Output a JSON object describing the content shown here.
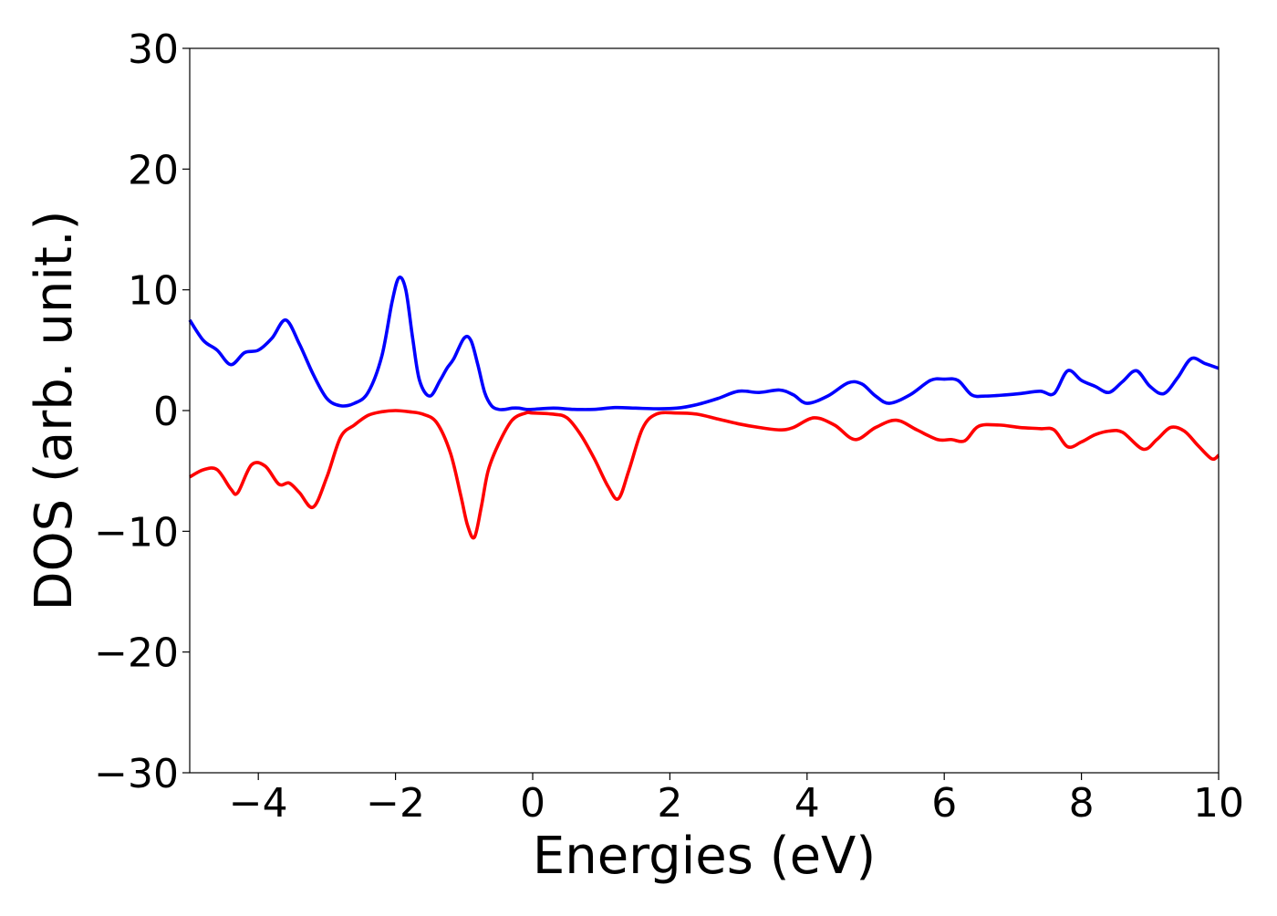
{
  "chart_data": {
    "type": "line",
    "title": "",
    "xlabel": "Energies (eV)",
    "ylabel": "DOS (arb. unit.)",
    "xlim": [
      -5,
      10
    ],
    "ylim": [
      -30,
      30
    ],
    "xticks": [
      -4,
      -2,
      0,
      2,
      4,
      6,
      8,
      10
    ],
    "yticks": [
      -30,
      -20,
      -10,
      0,
      10,
      20,
      30
    ],
    "grid": false,
    "legend": "none",
    "series": [
      {
        "color": "#0000ff",
        "x": [
          -5.0,
          -4.8,
          -4.6,
          -4.4,
          -4.2,
          -4.0,
          -3.8,
          -3.6,
          -3.4,
          -3.2,
          -3.0,
          -2.8,
          -2.6,
          -2.4,
          -2.2,
          -2.05,
          -1.95,
          -1.85,
          -1.75,
          -1.65,
          -1.5,
          -1.35,
          -1.25,
          -1.15,
          -1.0,
          -0.9,
          -0.8,
          -0.7,
          -0.6,
          -0.5,
          -0.4,
          -0.3,
          -0.2,
          -0.1,
          0.0,
          0.3,
          0.6,
          0.9,
          1.2,
          1.5,
          1.8,
          2.1,
          2.4,
          2.7,
          3.0,
          3.3,
          3.6,
          3.8,
          4.0,
          4.3,
          4.6,
          4.8,
          5.0,
          5.2,
          5.5,
          5.8,
          6.0,
          6.2,
          6.4,
          6.6,
          6.9,
          7.1,
          7.4,
          7.6,
          7.8,
          8.0,
          8.2,
          8.4,
          8.6,
          8.8,
          9.0,
          9.2,
          9.4,
          9.6,
          9.8,
          10.0
        ],
        "y": [
          7.5,
          5.8,
          5.0,
          3.8,
          4.8,
          5.0,
          6.0,
          7.5,
          5.5,
          3.0,
          1.0,
          0.4,
          0.6,
          1.5,
          4.5,
          9.0,
          11.0,
          10.0,
          6.0,
          2.5,
          1.2,
          2.5,
          3.5,
          4.3,
          6.0,
          5.8,
          3.8,
          1.5,
          0.4,
          0.1,
          0.1,
          0.2,
          0.2,
          0.1,
          0.1,
          0.2,
          0.1,
          0.1,
          0.25,
          0.2,
          0.15,
          0.2,
          0.5,
          1.0,
          1.6,
          1.5,
          1.7,
          1.3,
          0.6,
          1.2,
          2.3,
          2.2,
          1.2,
          0.6,
          1.3,
          2.5,
          2.6,
          2.5,
          1.3,
          1.2,
          1.3,
          1.4,
          1.6,
          1.4,
          3.3,
          2.5,
          2.0,
          1.5,
          2.4,
          3.3,
          2.0,
          1.4,
          2.7,
          4.3,
          3.9,
          3.5
        ]
      },
      {
        "color": "#ff0000",
        "x": [
          -5.0,
          -4.8,
          -4.6,
          -4.4,
          -4.3,
          -4.1,
          -3.9,
          -3.7,
          -3.55,
          -3.4,
          -3.2,
          -3.0,
          -2.8,
          -2.6,
          -2.4,
          -2.2,
          -2.0,
          -1.8,
          -1.6,
          -1.4,
          -1.2,
          -1.05,
          -0.95,
          -0.85,
          -0.75,
          -0.65,
          -0.5,
          -0.3,
          -0.1,
          0.0,
          0.3,
          0.5,
          0.7,
          0.9,
          1.1,
          1.25,
          1.4,
          1.6,
          1.8,
          2.1,
          2.4,
          2.7,
          3.0,
          3.3,
          3.6,
          3.8,
          4.1,
          4.4,
          4.7,
          5.0,
          5.3,
          5.6,
          5.9,
          6.1,
          6.3,
          6.5,
          6.8,
          7.1,
          7.4,
          7.6,
          7.8,
          8.0,
          8.2,
          8.4,
          8.6,
          8.9,
          9.1,
          9.3,
          9.5,
          9.7,
          9.9,
          10.0
        ],
        "y": [
          -5.5,
          -4.9,
          -4.9,
          -6.5,
          -6.8,
          -4.5,
          -4.6,
          -6.1,
          -6.0,
          -6.8,
          -8.0,
          -5.5,
          -2.2,
          -1.2,
          -0.4,
          -0.1,
          0.0,
          -0.1,
          -0.3,
          -1.0,
          -3.5,
          -7.0,
          -9.5,
          -10.5,
          -8.0,
          -5.0,
          -2.8,
          -0.8,
          -0.2,
          -0.2,
          -0.3,
          -0.6,
          -2.0,
          -4.0,
          -6.3,
          -7.3,
          -5.0,
          -1.5,
          -0.3,
          -0.2,
          -0.3,
          -0.7,
          -1.1,
          -1.4,
          -1.6,
          -1.4,
          -0.6,
          -1.2,
          -2.4,
          -1.4,
          -0.8,
          -1.6,
          -2.4,
          -2.4,
          -2.5,
          -1.3,
          -1.2,
          -1.4,
          -1.5,
          -1.6,
          -3.0,
          -2.6,
          -2.0,
          -1.7,
          -1.8,
          -3.2,
          -2.4,
          -1.4,
          -1.7,
          -2.9,
          -4.0,
          -3.7
        ]
      }
    ]
  }
}
